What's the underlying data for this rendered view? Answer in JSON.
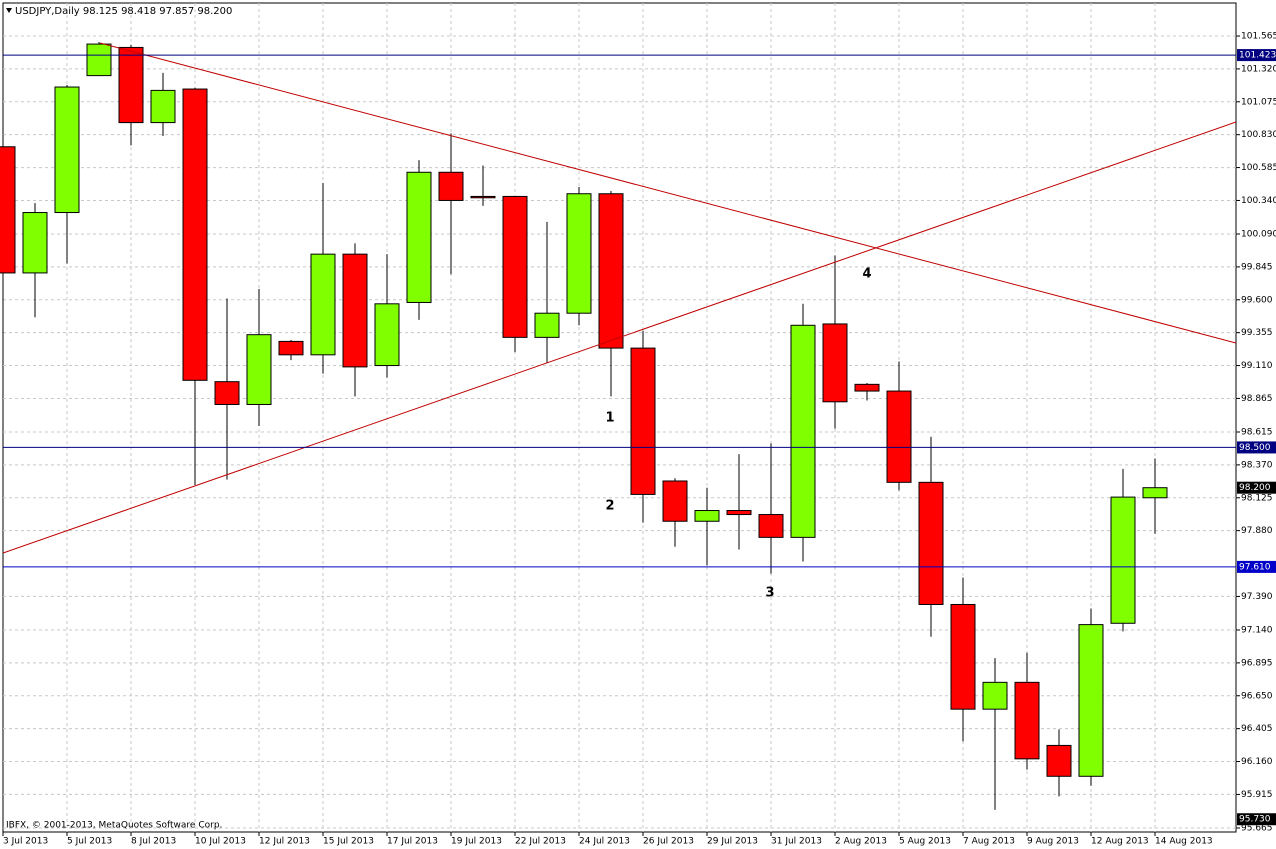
{
  "chart_data": {
    "type": "candlestick",
    "title": "USDJPY,Daily  98.125 98.418 97.857 98.200",
    "footer": "IBFX, © 2001-2013, MetaQuotes Software Corp.",
    "categories": [
      "3 Jul 2013",
      null,
      "5 Jul 2013",
      null,
      "8 Jul 2013",
      null,
      "10 Jul 2013",
      null,
      "12 Jul 2013",
      null,
      "15 Jul 2013",
      null,
      "17 Jul 2013",
      null,
      "19 Jul 2013",
      null,
      "22 Jul 2013",
      null,
      "24 Jul 2013",
      null,
      "26 Jul 2013",
      null,
      "29 Jul 2013",
      null,
      "31 Jul 2013",
      null,
      "2 Aug 2013",
      null,
      "5 Aug 2013",
      null,
      "7 Aug 2013",
      null,
      "9 Aug 2013",
      null,
      "12 Aug 2013",
      null,
      "14 Aug 2013"
    ],
    "open": [
      100.74,
      99.8,
      100.25,
      101.27,
      101.48,
      100.92,
      101.17,
      98.99,
      98.82,
      99.29,
      99.19,
      99.94,
      99.11,
      99.58,
      100.55,
      100.37,
      100.37,
      99.32,
      99.5,
      100.39,
      99.24,
      98.25,
      97.95,
      98.03,
      98.0,
      97.83,
      99.42,
      98.97,
      98.92,
      98.24,
      97.33,
      96.55,
      96.75,
      96.28,
      96.05,
      97.19,
      98.125
    ],
    "high": [
      100.83,
      100.32,
      101.2,
      101.52,
      101.5,
      101.29,
      101.18,
      99.61,
      99.68,
      99.3,
      100.47,
      100.02,
      99.94,
      100.64,
      100.84,
      100.6,
      100.37,
      100.18,
      100.44,
      100.41,
      99.37,
      98.27,
      98.2,
      98.45,
      98.53,
      99.57,
      99.93,
      98.98,
      99.14,
      98.58,
      97.53,
      96.93,
      96.97,
      96.4,
      97.3,
      98.34,
      98.418
    ],
    "low": [
      99.24,
      99.47,
      99.87,
      101.27,
      100.75,
      100.82,
      98.22,
      98.26,
      98.66,
      99.15,
      99.05,
      98.88,
      99.02,
      99.45,
      99.79,
      100.3,
      99.21,
      99.13,
      99.41,
      98.88,
      97.94,
      97.76,
      97.62,
      97.74,
      97.56,
      97.65,
      98.64,
      98.85,
      98.18,
      97.09,
      96.31,
      95.8,
      96.1,
      95.9,
      95.98,
      97.13,
      97.857
    ],
    "close": [
      99.8,
      100.25,
      101.185,
      101.505,
      100.92,
      101.16,
      99.0,
      98.82,
      99.34,
      99.19,
      99.94,
      99.1,
      99.57,
      100.55,
      100.34,
      100.36,
      99.32,
      99.5,
      100.39,
      99.24,
      98.15,
      97.95,
      98.03,
      98.0,
      97.83,
      99.41,
      98.84,
      98.92,
      98.24,
      97.33,
      96.55,
      96.75,
      96.18,
      96.05,
      97.18,
      98.13,
      98.2
    ],
    "up_color": "#80ff00",
    "down_color": "#ff0000",
    "ylim": [
      95.635,
      101.811
    ],
    "yticks": [
      101.565,
      {
        "value": 101.32,
        "label": "101.320"
      },
      101.075,
      {
        "value": 100.83,
        "label": "100.830"
      },
      100.585,
      {
        "value": 100.34,
        "label": "100.340"
      },
      {
        "value": 100.09,
        "label": "100.090"
      },
      99.845,
      {
        "value": 99.6,
        "label": "99.600"
      },
      99.355,
      {
        "value": 99.11,
        "label": "99.110"
      },
      98.865,
      98.615,
      {
        "value": 98.37,
        "label": "98.370"
      },
      98.125,
      {
        "value": 97.88,
        "label": "97.880"
      },
      {
        "value": 97.39,
        "label": "97.390"
      },
      {
        "value": 97.14,
        "label": "97.140"
      },
      96.895,
      {
        "value": 96.65,
        "label": "96.650"
      },
      96.405,
      {
        "value": 96.16,
        "label": "96.160"
      },
      95.915,
      95.665
    ],
    "grid": true,
    "levels": [
      {
        "value": 101.423,
        "color": "#000080",
        "line": true
      },
      {
        "value": 98.5,
        "label": "98.500",
        "color": "#000080",
        "line": true
      },
      {
        "value": 97.61,
        "label": "97.610",
        "color": "#0000c8",
        "line": true
      },
      {
        "value": 98.2,
        "label": "98.200",
        "color": "#000000",
        "line": false
      },
      {
        "value": 95.73,
        "label": "95.730",
        "color": "#000000",
        "line": false
      }
    ],
    "annotations": [
      "1",
      "2",
      "3",
      "4"
    ]
  }
}
